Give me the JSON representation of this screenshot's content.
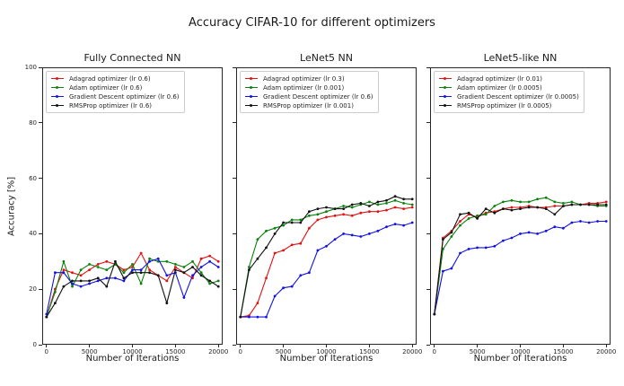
{
  "figure": {
    "title": "Accuracy CIFAR-10 for different optimizers"
  },
  "chart_data": [
    {
      "type": "line",
      "title": "Fully Connected NN",
      "xlabel": "Number of Iterations",
      "ylabel": "Accuracy [%]",
      "xlim": [
        -500,
        20500
      ],
      "ylim": [
        0,
        100
      ],
      "xticks": [
        0,
        5000,
        10000,
        15000,
        20000
      ],
      "yticks": [
        0,
        20,
        40,
        60,
        80,
        100
      ],
      "show_ytick_labels": true,
      "legend_position": "upper-left",
      "grid": false,
      "x": [
        0,
        1000,
        2000,
        3000,
        4000,
        5000,
        6000,
        7000,
        8000,
        9000,
        10000,
        11000,
        12000,
        13000,
        14000,
        15000,
        16000,
        17000,
        18000,
        19000,
        20000
      ],
      "series": [
        {
          "name": "Adagrad optimizer (lr 0.6)",
          "color": "#e01212",
          "values": [
            10,
            20,
            27,
            26,
            25,
            27,
            29,
            30,
            29,
            27,
            28,
            33,
            27,
            25,
            23,
            28,
            26,
            24,
            31,
            32,
            30
          ]
        },
        {
          "name": "Adam optimizer (lr 0.6)",
          "color": "#0c800c",
          "values": [
            10,
            19,
            30,
            21,
            27,
            29,
            28,
            27,
            29,
            26,
            29,
            22,
            31,
            30,
            30,
            29,
            28,
            30,
            26,
            22,
            23
          ]
        },
        {
          "name": "Gradient Descent optimizer (lr 0.6)",
          "color": "#1212e0",
          "values": [
            11,
            26,
            26,
            22,
            21,
            22,
            23,
            24,
            24,
            23,
            27,
            27,
            30,
            31,
            25,
            26,
            17,
            25,
            28,
            30,
            28
          ]
        },
        {
          "name": "RMSProp optimizer (lr 0.6)",
          "color": "#111111",
          "values": [
            10,
            15,
            21,
            23,
            23,
            23,
            24,
            21,
            30,
            24,
            26,
            26,
            26,
            25,
            15,
            27,
            26,
            28,
            25,
            23,
            21
          ]
        }
      ]
    },
    {
      "type": "line",
      "title": "LeNet5 NN",
      "xlabel": "Number of Iterations",
      "ylabel": "",
      "xlim": [
        -500,
        20500
      ],
      "ylim": [
        0,
        100
      ],
      "xticks": [
        0,
        5000,
        10000,
        15000,
        20000
      ],
      "yticks": [
        0,
        20,
        40,
        60,
        80,
        100
      ],
      "show_ytick_labels": false,
      "legend_position": "upper-left",
      "grid": false,
      "x": [
        0,
        1000,
        2000,
        3000,
        4000,
        5000,
        6000,
        7000,
        8000,
        9000,
        10000,
        11000,
        12000,
        13000,
        14000,
        15000,
        16000,
        17000,
        18000,
        19000,
        20000
      ],
      "series": [
        {
          "name": "Adagrad optimizer (lr 0.3)",
          "color": "#e01212",
          "values": [
            10,
            10.5,
            15,
            24,
            33,
            34,
            36,
            36.5,
            42,
            45,
            46,
            46.5,
            47,
            46.5,
            47.5,
            48,
            48,
            48.5,
            49.5,
            49,
            49.5
          ]
        },
        {
          "name": "Adam optimizer (lr 0.001)",
          "color": "#0c800c",
          "values": [
            10,
            28,
            38,
            41,
            42,
            43,
            45,
            45,
            46.5,
            47,
            48,
            49,
            50,
            49.5,
            50.5,
            51.5,
            50.5,
            51,
            52,
            51,
            50.5
          ]
        },
        {
          "name": "Gradient Descent optimizer (lr 0.6)",
          "color": "#1212e0",
          "values": [
            10,
            10,
            10,
            10,
            17.5,
            20.5,
            21,
            25,
            26,
            34,
            35.5,
            38,
            40,
            39.5,
            39,
            40,
            41,
            42.5,
            43.5,
            43,
            44
          ]
        },
        {
          "name": "RMSProp optimizer (lr 0.001)",
          "color": "#111111",
          "values": [
            10,
            27,
            31,
            35,
            40,
            44,
            44,
            44,
            48,
            49,
            49.5,
            49,
            49,
            50.5,
            51,
            50,
            51.5,
            52,
            53.5,
            52.5,
            52.5
          ]
        }
      ]
    },
    {
      "type": "line",
      "title": "LeNet5-like NN",
      "xlabel": "Number of Iterations",
      "ylabel": "",
      "xlim": [
        -500,
        20500
      ],
      "ylim": [
        0,
        100
      ],
      "xticks": [
        0,
        5000,
        10000,
        15000,
        20000
      ],
      "yticks": [
        0,
        20,
        40,
        60,
        80,
        100
      ],
      "show_ytick_labels": false,
      "legend_position": "upper-left",
      "grid": false,
      "x": [
        0,
        1000,
        2000,
        3000,
        4000,
        5000,
        6000,
        7000,
        8000,
        9000,
        10000,
        11000,
        12000,
        13000,
        14000,
        15000,
        16000,
        17000,
        18000,
        19000,
        20000
      ],
      "series": [
        {
          "name": "Adagrad optimizer (lr 0.01)",
          "color": "#e01212",
          "values": [
            11,
            38.5,
            41,
            44.5,
            47,
            46,
            47.5,
            48,
            49,
            49.5,
            49.5,
            50,
            49.5,
            49.5,
            50,
            50,
            50.5,
            50.5,
            51,
            51,
            51.5
          ]
        },
        {
          "name": "Adam optimizer (lr 0.0005)",
          "color": "#0c800c",
          "values": [
            11,
            34.5,
            39,
            43,
            45.5,
            46.5,
            47,
            50,
            51.5,
            52,
            51.5,
            51.5,
            52.5,
            53,
            51.5,
            51,
            51.5,
            50.5,
            50.5,
            50,
            50
          ]
        },
        {
          "name": "Gradient Descent optimizer (lr 0.0005)",
          "color": "#1212e0",
          "values": [
            11,
            26.5,
            27.5,
            33,
            34.5,
            35,
            35,
            35.5,
            37.5,
            38.5,
            40,
            40.5,
            40,
            41,
            42.5,
            42,
            44,
            44.5,
            44,
            44.5,
            44.5
          ]
        },
        {
          "name": "RMSProp optimizer (lr 0.0005)",
          "color": "#111111",
          "values": [
            11,
            38,
            40.5,
            47,
            47.5,
            45.5,
            49,
            47.5,
            49,
            48.5,
            49,
            49.5,
            49.5,
            49,
            47,
            50,
            50.5,
            50.5,
            50.5,
            50.5,
            50.5
          ]
        }
      ]
    }
  ]
}
